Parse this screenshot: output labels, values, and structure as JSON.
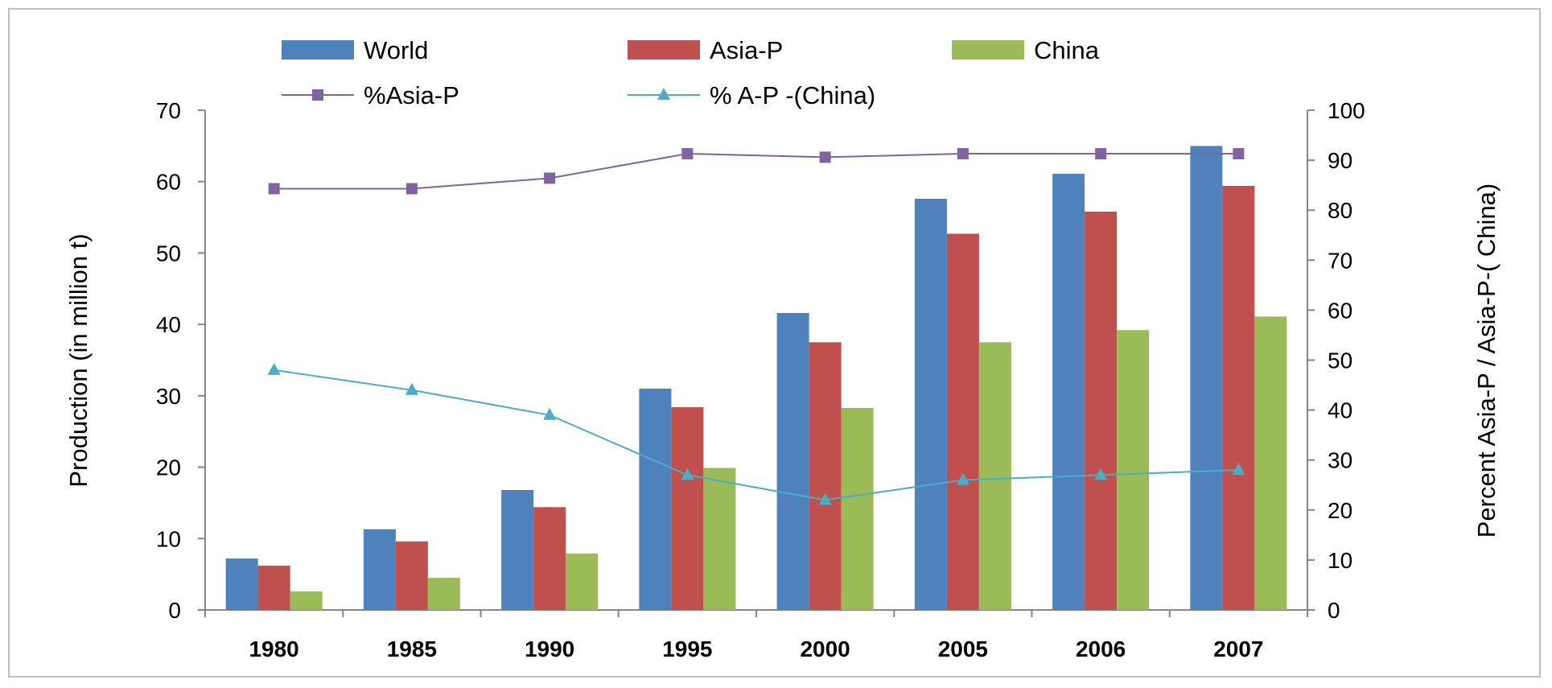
{
  "chart_data": {
    "type": "bar",
    "categories": [
      "1980",
      "1985",
      "1990",
      "1995",
      "2000",
      "2005",
      "2006",
      "2007"
    ],
    "series": [
      {
        "name": "World",
        "type": "bar",
        "axis": "left",
        "color": "#4F81BD",
        "values": [
          7.2,
          11.3,
          16.8,
          31.0,
          41.6,
          57.6,
          61.1,
          65.0
        ]
      },
      {
        "name": "Asia-P",
        "type": "bar",
        "axis": "left",
        "color": "#C0504D",
        "values": [
          6.2,
          9.6,
          14.4,
          28.4,
          37.5,
          52.7,
          55.8,
          59.4
        ]
      },
      {
        "name": "China",
        "type": "bar",
        "axis": "left",
        "color": "#9BBB59",
        "values": [
          2.6,
          4.5,
          7.9,
          19.9,
          28.3,
          37.5,
          39.2,
          41.1
        ]
      },
      {
        "name": "%Asia-P",
        "type": "line",
        "axis": "right",
        "color": "#8064A2",
        "marker": "square",
        "values": [
          84.3,
          84.3,
          86.4,
          91.3,
          90.6,
          91.3,
          91.3,
          91.3
        ]
      },
      {
        "name": "% A-P -(China)",
        "type": "line",
        "axis": "right",
        "color": "#4BACC6",
        "marker": "triangle",
        "values": [
          48.0,
          44.0,
          39.0,
          27.0,
          22.0,
          26.0,
          27.0,
          28.0
        ]
      }
    ],
    "ylabel": "Production (in million t)",
    "y2label": "Percent Asia-P / Asia-P-( China)",
    "ylim": [
      0,
      70
    ],
    "yticks": [
      "0",
      "10",
      "20",
      "30",
      "40",
      "50",
      "60",
      "70"
    ],
    "y2lim": [
      0,
      100
    ],
    "y2ticks": [
      "0",
      "10",
      "20",
      "30",
      "40",
      "50",
      "60",
      "70",
      "80",
      "90",
      "100"
    ],
    "grid": false,
    "legend_position": "top"
  }
}
